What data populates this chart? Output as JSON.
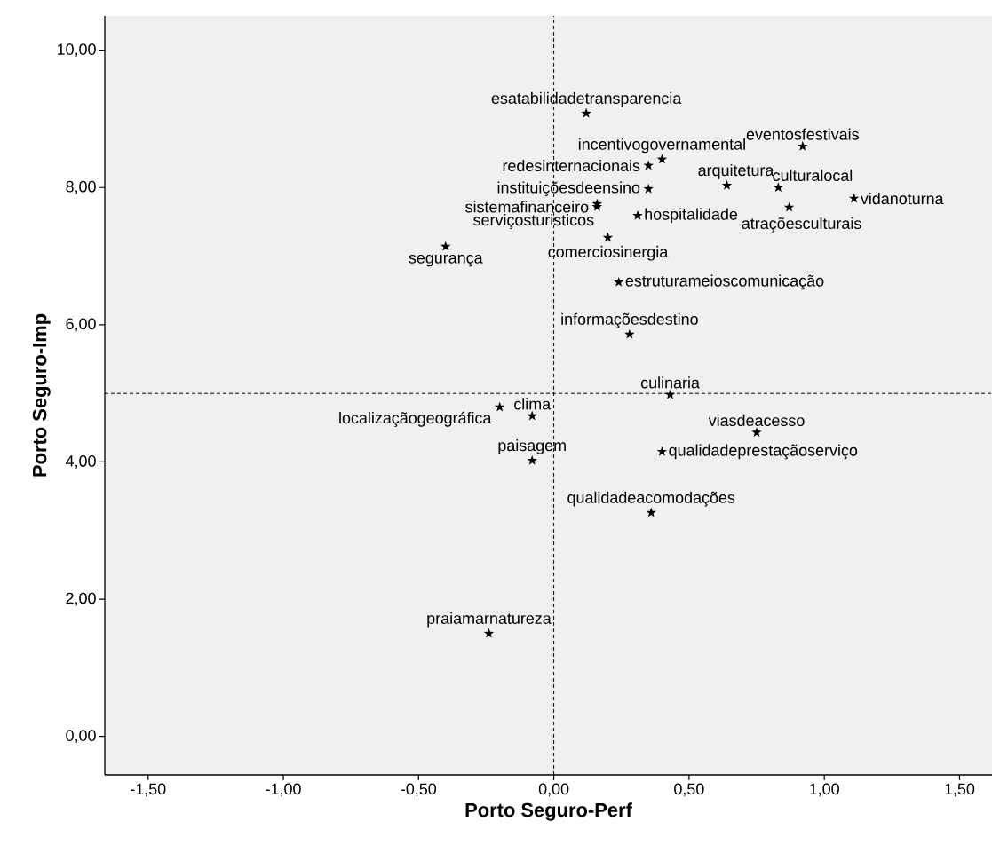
{
  "chart_data": {
    "type": "scatter",
    "xlabel": "Porto Seguro-Perf",
    "ylabel": "Porto Seguro-Imp",
    "xlim": [
      -1.66,
      1.62
    ],
    "ylim": [
      -0.56,
      10.5
    ],
    "xticks": [
      {
        "value": -1.5,
        "label": "-1,50"
      },
      {
        "value": -1.0,
        "label": "-1,00"
      },
      {
        "value": -0.5,
        "label": "-0,50"
      },
      {
        "value": 0,
        "label": "0,00"
      },
      {
        "value": 0.5,
        "label": "0,50"
      },
      {
        "value": 1.0,
        "label": "1,00"
      },
      {
        "value": 1.5,
        "label": "1,50"
      }
    ],
    "yticks": [
      {
        "value": 0,
        "label": "0,00"
      },
      {
        "value": 2,
        "label": "2,00"
      },
      {
        "value": 4,
        "label": "4,00"
      },
      {
        "value": 6,
        "label": "6,00"
      },
      {
        "value": 8,
        "label": "8,00"
      },
      {
        "value": 10,
        "label": "10,00"
      }
    ],
    "marker": "star",
    "legend": false,
    "grid": false,
    "ref_lines": [
      {
        "axis": "x",
        "value": 0,
        "line_style": "dashed"
      },
      {
        "axis": "y",
        "value": 5,
        "line_style": "dashed"
      }
    ],
    "series": [
      {
        "name": "esatabilidadetransparencia",
        "color": "#000000",
        "x": [
          0.12
        ],
        "values": [
          9.08
        ]
      },
      {
        "name": "eventosfestivais",
        "color": "#000000",
        "x": [
          0.92
        ],
        "values": [
          8.6
        ]
      },
      {
        "name": "incentivogovernamental",
        "color": "#000000",
        "x": [
          0.4
        ],
        "values": [
          8.41
        ]
      },
      {
        "name": "redesinternacionais",
        "color": "#000000",
        "x": [
          0.35
        ],
        "values": [
          8.32
        ]
      },
      {
        "name": "arquitetura",
        "color": "#000000",
        "x": [
          0.64
        ],
        "values": [
          8.03
        ]
      },
      {
        "name": "culturalocal",
        "color": "#000000",
        "x": [
          0.83
        ],
        "values": [
          8.0
        ]
      },
      {
        "name": "instituiçõesdeensino",
        "color": "#000000",
        "x": [
          0.35
        ],
        "values": [
          7.98
        ]
      },
      {
        "name": "serviçosturisticos",
        "color": "#000000",
        "x": [
          0.16
        ],
        "values": [
          7.76
        ]
      },
      {
        "name": "sistemafinanceiro",
        "color": "#000000",
        "x": [
          0.16
        ],
        "values": [
          7.72
        ]
      },
      {
        "name": "hospitalidade",
        "color": "#000000",
        "x": [
          0.31
        ],
        "values": [
          7.59
        ]
      },
      {
        "name": "vidanoturna",
        "color": "#000000",
        "x": [
          1.11
        ],
        "values": [
          7.84
        ]
      },
      {
        "name": "atraçõesculturais",
        "color": "#000000",
        "x": [
          0.87
        ],
        "values": [
          7.71
        ]
      },
      {
        "name": "segurança",
        "color": "#000000",
        "x": [
          -0.4
        ],
        "values": [
          7.14
        ]
      },
      {
        "name": "comerciosinergia",
        "color": "#000000",
        "x": [
          0.2
        ],
        "values": [
          7.27
        ]
      },
      {
        "name": "estruturameioscomunicação",
        "color": "#000000",
        "x": [
          0.24
        ],
        "values": [
          6.62
        ]
      },
      {
        "name": "informaçõesdestino",
        "color": "#000000",
        "x": [
          0.28
        ],
        "values": [
          5.86
        ]
      },
      {
        "name": "culinaria",
        "color": "#000000",
        "x": [
          0.43
        ],
        "values": [
          4.98
        ]
      },
      {
        "name": "clima",
        "color": "#000000",
        "x": [
          -0.08
        ],
        "values": [
          4.67
        ]
      },
      {
        "name": "localizaçãogeográfica",
        "color": "#000000",
        "x": [
          -0.2
        ],
        "values": [
          4.8
        ]
      },
      {
        "name": "paisagem",
        "color": "#000000",
        "x": [
          -0.08
        ],
        "values": [
          4.02
        ]
      },
      {
        "name": "viasdeacesso",
        "color": "#000000",
        "x": [
          0.75
        ],
        "values": [
          4.43
        ]
      },
      {
        "name": "qualidadeprestaçãoserviço",
        "color": "#000000",
        "x": [
          0.4
        ],
        "values": [
          4.15
        ]
      },
      {
        "name": "qualidadeacomodações",
        "color": "#000000",
        "x": [
          0.36
        ],
        "values": [
          3.26
        ]
      },
      {
        "name": "praiamarnatureza",
        "color": "#000000",
        "x": [
          -0.24
        ],
        "values": [
          1.5
        ]
      }
    ]
  }
}
